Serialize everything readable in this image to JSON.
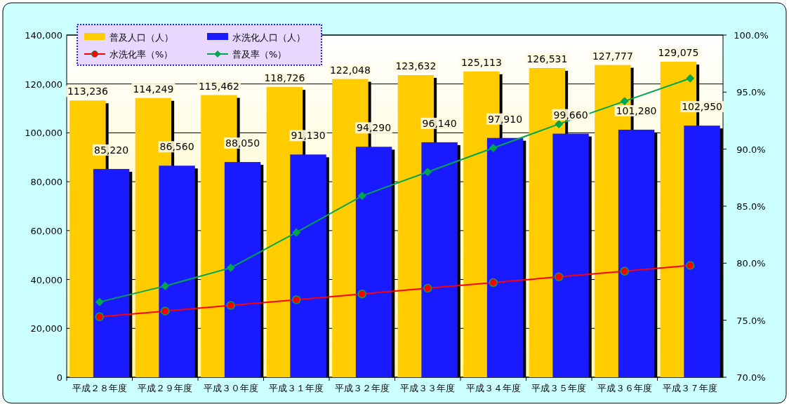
{
  "chart_data": {
    "type": "bar",
    "categories": [
      "平成２８年度",
      "平成２９年度",
      "平成３０年度",
      "平成３１年度",
      "平成３２年度",
      "平成３３年度",
      "平成３４年度",
      "平成３５年度",
      "平成３６年度",
      "平成３７年度"
    ],
    "series": [
      {
        "name": "普及人口（人）",
        "color": "#ffcc00",
        "values": [
          113236,
          114249,
          115462,
          118726,
          122048,
          123632,
          125113,
          126531,
          127777,
          129075
        ],
        "value_labels": [
          "113,236",
          "114,249",
          "115,462",
          "118,726",
          "122,048",
          "123,632",
          "125,113",
          "126,531",
          "127,777",
          "129,075"
        ]
      },
      {
        "name": "水洗化人口（人）",
        "color": "#1a1aff",
        "values": [
          85220,
          86560,
          88050,
          91130,
          94290,
          96140,
          97910,
          99660,
          101280,
          102950
        ],
        "value_labels": [
          "85,220",
          "86,560",
          "88,050",
          "91,130",
          "94,290",
          "96,140",
          "97,910",
          "99,660",
          "101,280",
          "102,950"
        ]
      },
      {
        "name": "水洗化率（%）",
        "type": "line",
        "axis": "y2",
        "color": "#ff0000",
        "marker": "circle",
        "values": [
          75.3,
          75.8,
          76.3,
          76.8,
          77.3,
          77.8,
          78.3,
          78.8,
          79.3,
          79.8
        ]
      },
      {
        "name": "普及率（%）",
        "type": "line",
        "axis": "y2",
        "color": "#00a550",
        "marker": "diamond",
        "values": [
          76.6,
          78.0,
          79.6,
          82.7,
          85.9,
          88.0,
          90.1,
          92.2,
          94.2,
          96.2
        ]
      }
    ],
    "ylim": [
      0,
      140000
    ],
    "yticks": [
      0,
      {
        "value": 20000,
        "label": "20,000"
      },
      {
        "value": 40000,
        "label": "40,000"
      },
      {
        "value": 60000,
        "label": "60,000"
      },
      {
        "value": 80000,
        "label": "80,000"
      },
      {
        "value": 100000,
        "label": "100,000"
      },
      {
        "value": 120000,
        "label": "120,000"
      },
      {
        "value": 140000,
        "label": "140,000"
      }
    ],
    "y2lim": [
      70,
      100
    ],
    "y2ticks": [
      {
        "value": 70,
        "label": "70.0%"
      },
      {
        "value": 75,
        "label": "75.0%"
      },
      {
        "value": 80,
        "label": "80.0%"
      },
      {
        "value": 85,
        "label": "85.0%"
      },
      {
        "value": 90,
        "label": "90.0%"
      },
      {
        "value": 95,
        "label": "95.0%"
      },
      {
        "value": 100,
        "label": "100.0%"
      }
    ],
    "grid": "y",
    "legend": "top left"
  }
}
